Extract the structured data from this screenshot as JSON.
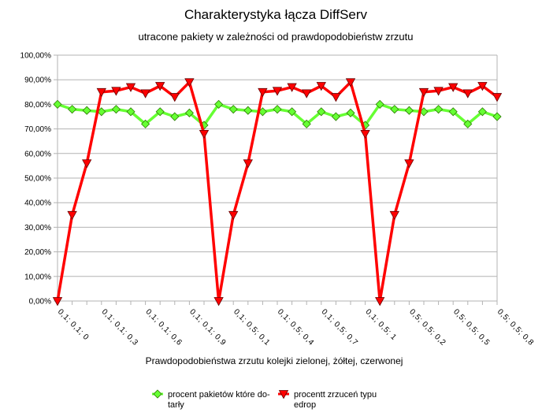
{
  "chart_data": {
    "type": "line",
    "title": "Charakterystyka łącza DiffServ",
    "subtitle": "utracone pakiety w zależności od prawdopodobieństw zrzutu",
    "xlabel": "Prawdopodobieństwa zrzutu kolejki zielonej, żółtej, czerwonej",
    "ylabel": "",
    "ylim": [
      0,
      100
    ],
    "y_ticks": [
      "0,00%",
      "10,00%",
      "20,00%",
      "30,00%",
      "40,00%",
      "50,00%",
      "60,00%",
      "70,00%",
      "80,00%",
      "90,00%",
      "100,00%"
    ],
    "categories": [
      "0,1; 0,1; 0",
      "0,1; 0,1; 0,1",
      "0,1; 0,1; 0,2",
      "0,1; 0,1; 0,3",
      "0,1; 0,1; 0,4",
      "0,1; 0,1; 0,5",
      "0,1; 0,1; 0,6",
      "0,1; 0,1; 0,7",
      "0,1; 0,1; 0,8",
      "0,1; 0,1; 0,9",
      "0,1; 0,1; 1",
      "0,1; 0,5; 0",
      "0,1; 0,5; 0,1",
      "0,1; 0,5; 0,2",
      "0,1; 0,5; 0,3",
      "0,1; 0,5; 0,4",
      "0,1; 0,5; 0,5",
      "0,1; 0,5; 0,6",
      "0,1; 0,5; 0,7",
      "0,1; 0,5; 0,8",
      "0,1; 0,5; 0,9",
      "0,1; 0,5; 1",
      "0,5; 0,5; 0",
      "0,5; 0,5; 0,1",
      "0,5; 0,5; 0,2",
      "0,5; 0,5; 0,3",
      "0,5; 0,5; 0,4",
      "0,5; 0,5; 0,5",
      "0,5; 0,5; 0,6",
      "0,5; 0,5; 0,7",
      "0,5; 0,5; 0,8"
    ],
    "x_tick_labels": [
      "0,1; 0,1; 0",
      "0,1; 0,1; 0,3",
      "0,1; 0,1; 0,6",
      "0,1; 0,1; 0,9",
      "0,1; 0,5; 0,1",
      "0,1; 0,5; 0,4",
      "0,1; 0,5; 0,7",
      "0,1; 0,5; 1",
      "0,5; 0,5; 0,2",
      "0,5; 0,5; 0,5",
      "0,5; 0,5; 0,8"
    ],
    "x_tick_indices": [
      0,
      3,
      6,
      9,
      12,
      15,
      18,
      21,
      24,
      27,
      30
    ],
    "series": [
      {
        "name": "procent pakietów które dotarły",
        "legend_label": [
          "procent pakietów które do-",
          "tarły"
        ],
        "color": "#66ff33",
        "marker": "diamond",
        "values": [
          80,
          78,
          77.5,
          77,
          78,
          77,
          72,
          77,
          75,
          76.5,
          71.5,
          80,
          78,
          77.5,
          77,
          78,
          77,
          72,
          77,
          75,
          76.5,
          71.5,
          80,
          78,
          77.5,
          77,
          78,
          77,
          72,
          77,
          75
        ]
      },
      {
        "name": "procentt zrzuceń typu edrop",
        "legend_label": [
          "procentt zrzuceń typu",
          "edrop"
        ],
        "color": "#ff0000",
        "marker": "triangle-down",
        "values": [
          0,
          35,
          56,
          85,
          85.5,
          87,
          84.5,
          87.5,
          83,
          89,
          68,
          0,
          35,
          56,
          85,
          85.5,
          87,
          84.5,
          87.5,
          83,
          89,
          68,
          0,
          35,
          56,
          85,
          85.5,
          87,
          84.5,
          87.5,
          83
        ]
      }
    ],
    "grid": "horizontal",
    "legend_position": "bottom"
  }
}
